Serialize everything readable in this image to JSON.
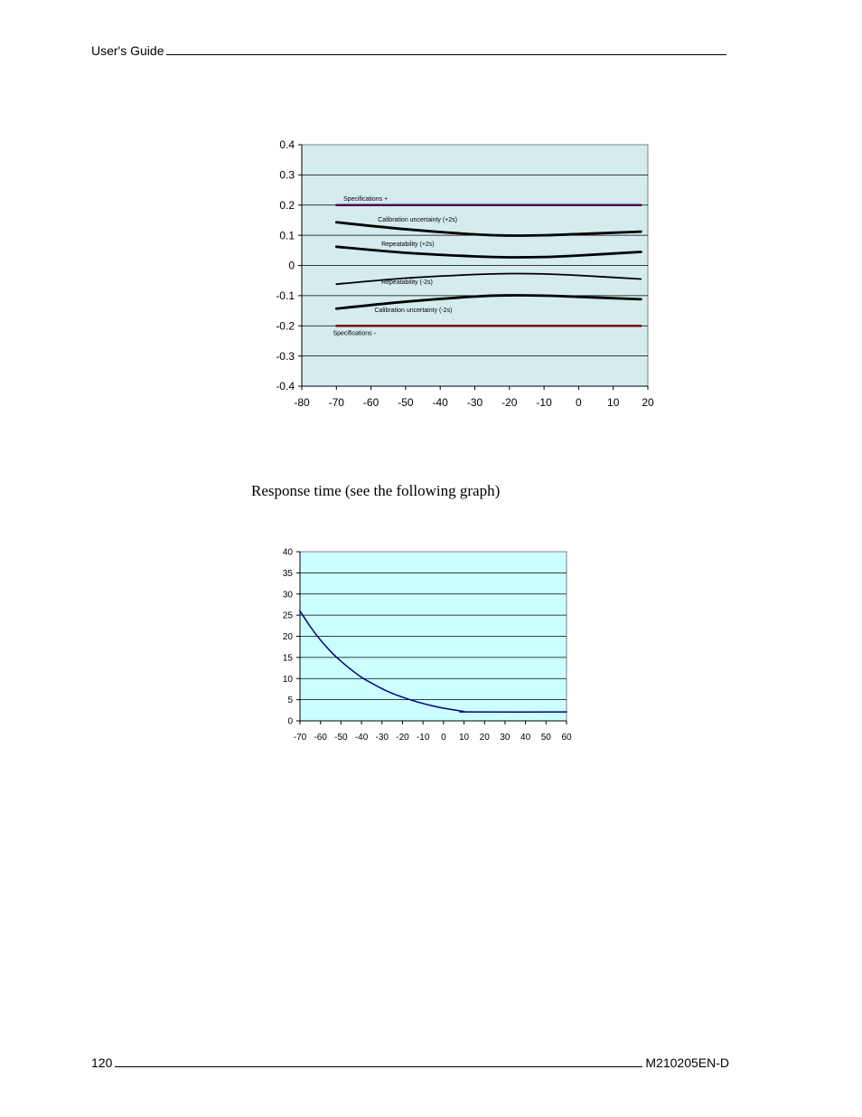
{
  "header": {
    "title": "User's Guide"
  },
  "footer": {
    "page_number": "120",
    "doc_code": "M210205EN-D"
  },
  "caption": "Response time (see the following graph)",
  "chart_data": [
    {
      "type": "line",
      "title": "",
      "xlabel": "",
      "ylabel": "",
      "xlim": [
        -80,
        20
      ],
      "ylim": [
        -0.4,
        0.4
      ],
      "x_ticks": [
        "-80",
        "-70",
        "-60",
        "-50",
        "-40",
        "-30",
        "-20",
        "-10",
        "0",
        "10",
        "20"
      ],
      "y_ticks": [
        "0.4",
        "0.3",
        "0.2",
        "0.1",
        "0",
        "-0.1",
        "-0.2",
        "-0.3",
        "-0.4"
      ],
      "grid": "horizontal",
      "background": "#d4ecee",
      "series": [
        {
          "name": "Specifications +",
          "color": "#4b0a52",
          "width": 2.5,
          "x": [
            -70,
            18
          ],
          "y": [
            0.2,
            0.2
          ]
        },
        {
          "name": "Calibration uncertainty  (+2s)",
          "color": "#000000",
          "width": 2.8,
          "x": [
            -70,
            -50,
            -30,
            -20,
            -10,
            0,
            18
          ],
          "y": [
            0.143,
            0.12,
            0.103,
            0.099,
            0.1,
            0.104,
            0.112
          ]
        },
        {
          "name": "Repeatability  (+2s)",
          "color": "#000000",
          "width": 2.8,
          "x": [
            -70,
            -50,
            -30,
            -20,
            -10,
            0,
            18
          ],
          "y": [
            0.062,
            0.042,
            0.03,
            0.027,
            0.028,
            0.033,
            0.045
          ]
        },
        {
          "name": "Repeatability  (-2s)",
          "color": "#000000",
          "width": 1.8,
          "x": [
            -70,
            -50,
            -30,
            -20,
            -10,
            0,
            18
          ],
          "y": [
            -0.062,
            -0.042,
            -0.03,
            -0.027,
            -0.028,
            -0.033,
            -0.045
          ]
        },
        {
          "name": "Calibration uncertainty  (-2s)",
          "color": "#000000",
          "width": 2.8,
          "x": [
            -70,
            -50,
            -30,
            -20,
            -10,
            0,
            18
          ],
          "y": [
            -0.143,
            -0.12,
            -0.103,
            -0.099,
            -0.1,
            -0.104,
            -0.112
          ]
        },
        {
          "name": "Specifications -",
          "color": "#7a0a0a",
          "width": 2.5,
          "x": [
            -70,
            18
          ],
          "y": [
            -0.2,
            -0.2
          ]
        }
      ]
    },
    {
      "type": "line",
      "title": "",
      "xlabel": "",
      "ylabel": "",
      "xlim": [
        -70,
        60
      ],
      "ylim": [
        0,
        40
      ],
      "x_ticks": [
        "-70",
        "-60",
        "-50",
        "-40",
        "-30",
        "-20",
        "-10",
        "0",
        "10",
        "20",
        "30",
        "40",
        "50",
        "60"
      ],
      "y_ticks": [
        "40",
        "35",
        "30",
        "25",
        "20",
        "15",
        "10",
        "5",
        "0"
      ],
      "grid": "horizontal",
      "background": "#ccffff",
      "series": [
        {
          "color": "#000080",
          "x": [
            -70,
            -65,
            -60,
            -55,
            -50,
            -45,
            -40,
            -35,
            -30,
            -25,
            -20,
            -15,
            -10,
            -5,
            0,
            5,
            10,
            12,
            60
          ],
          "y": [
            26,
            22.3,
            19.1,
            16.4,
            14.1,
            12.1,
            10.3,
            8.9,
            7.6,
            6.5,
            5.6,
            4.8,
            4.1,
            3.5,
            3.0,
            2.6,
            2.2,
            2.1,
            2.1
          ]
        }
      ]
    }
  ]
}
